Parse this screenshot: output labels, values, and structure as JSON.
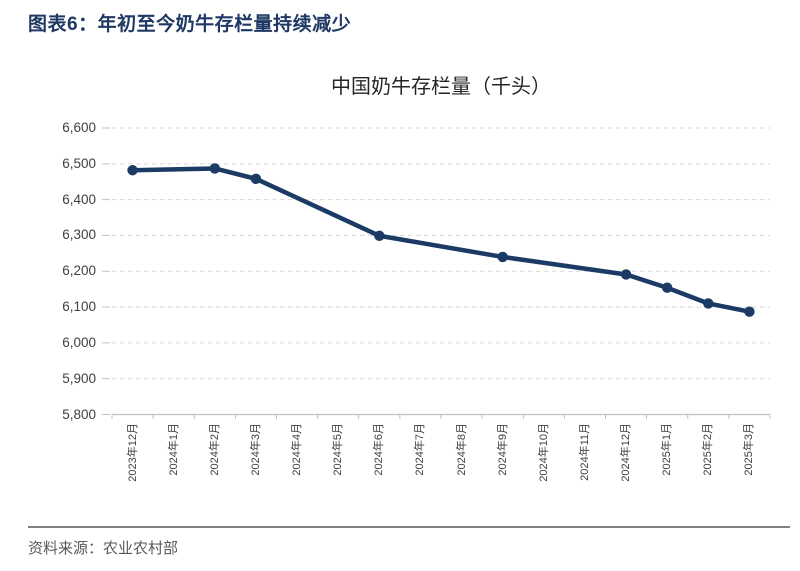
{
  "header": {
    "title": "图表6：年初至今奶牛存栏量持续减少",
    "color": "#1f3864"
  },
  "footer": {
    "source": "资料来源：农业农村部"
  },
  "chart_data": {
    "type": "line",
    "title": "中国奶牛存栏量（千头）",
    "categories": [
      "2023年12月",
      "2024年1月",
      "2024年2月",
      "2024年3月",
      "2024年4月",
      "2024年5月",
      "2024年6月",
      "2024年7月",
      "2024年8月",
      "2024年9月",
      "2024年10月",
      "2024年11月",
      "2024年12月",
      "2025年1月",
      "2025年2月",
      "2025年3月"
    ],
    "series": [
      {
        "name": "中国奶牛存栏量",
        "color": "#1b3a64",
        "marker": "circle",
        "points": [
          {
            "category": "2023年12月",
            "value": 6482
          },
          {
            "category": "2024年2月",
            "value": 6487
          },
          {
            "category": "2024年3月",
            "value": 6458
          },
          {
            "category": "2024年6月",
            "value": 6299
          },
          {
            "category": "2024年9月",
            "value": 6240
          },
          {
            "category": "2024年12月",
            "value": 6191
          },
          {
            "category": "2025年1月",
            "value": 6154
          },
          {
            "category": "2025年2月",
            "value": 6110
          },
          {
            "category": "2025年3月",
            "value": 6087
          }
        ]
      }
    ],
    "ylim": [
      5800,
      6600
    ],
    "y_tick_step": 100,
    "y_tick_labels": [
      "6,600",
      "6,500",
      "6,400",
      "6,300",
      "6,200",
      "6,100",
      "6,000",
      "5,900",
      "5,800"
    ],
    "grid": "horizontal-dashed",
    "grid_color": "#d9d9d9",
    "axis_color": "#c0c0c0",
    "tick_label_color": "#404040",
    "legend": "none"
  }
}
